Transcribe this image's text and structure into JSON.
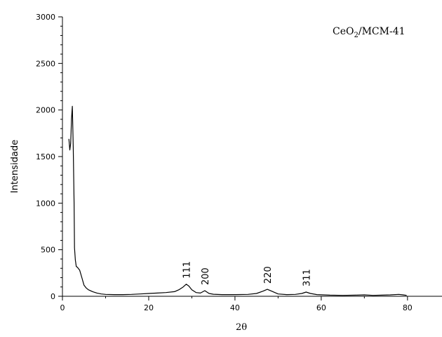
{
  "chart_data": {
    "type": "line",
    "xlabel": "2θ",
    "ylabel": "Intensidade",
    "xlim": [
      0,
      88
    ],
    "ylim": [
      0,
      3000
    ],
    "grid": false,
    "x_ticks": [
      0,
      20,
      40,
      60,
      80
    ],
    "y_ticks": [
      0,
      500,
      1000,
      1500,
      2000,
      2500,
      3000
    ],
    "legend": {
      "base": "CeO",
      "subscript": "2",
      "rest": "/MCM-41",
      "position": "top-right"
    },
    "annotations": [
      {
        "text": "111",
        "x": 28.7,
        "y": 130
      },
      {
        "text": "200",
        "x": 33.0,
        "y": 60
      },
      {
        "text": "220",
        "x": 47.5,
        "y": 75
      },
      {
        "text": "311",
        "x": 56.5,
        "y": 45
      }
    ],
    "series": [
      {
        "color": "#000000",
        "x": [
          1.5,
          1.7,
          1.9,
          2.0,
          2.1,
          2.2,
          2.3,
          2.5,
          2.7,
          2.8,
          3.0,
          3.2,
          3.5,
          4.0,
          4.5,
          5.0,
          5.5,
          6.0,
          7.0,
          8.0,
          9.0,
          10.0,
          12.0,
          14.0,
          16.0,
          18.0,
          20.0,
          22.0,
          24.0,
          26.0,
          27.0,
          28.0,
          28.7,
          29.3,
          30.0,
          31.0,
          32.0,
          33.0,
          34.0,
          35.0,
          37.0,
          40.0,
          43.0,
          45.0,
          46.5,
          47.5,
          48.5,
          50.0,
          52.0,
          54.0,
          55.5,
          56.5,
          57.5,
          59.0,
          62.0,
          65.0,
          68.0,
          70.0,
          72.0,
          74.0,
          76.0,
          78.0,
          79.0,
          79.8
        ],
        "y": [
          1690,
          1570,
          1640,
          1760,
          1900,
          1970,
          2040,
          1600,
          1000,
          520,
          390,
          320,
          310,
          280,
          200,
          120,
          90,
          70,
          50,
          35,
          25,
          20,
          18,
          18,
          20,
          25,
          30,
          35,
          40,
          50,
          70,
          100,
          130,
          110,
          70,
          40,
          35,
          60,
          30,
          22,
          18,
          18,
          20,
          30,
          55,
          75,
          55,
          25,
          18,
          20,
          30,
          45,
          30,
          18,
          12,
          10,
          12,
          15,
          10,
          12,
          15,
          20,
          15,
          10
        ]
      }
    ]
  }
}
